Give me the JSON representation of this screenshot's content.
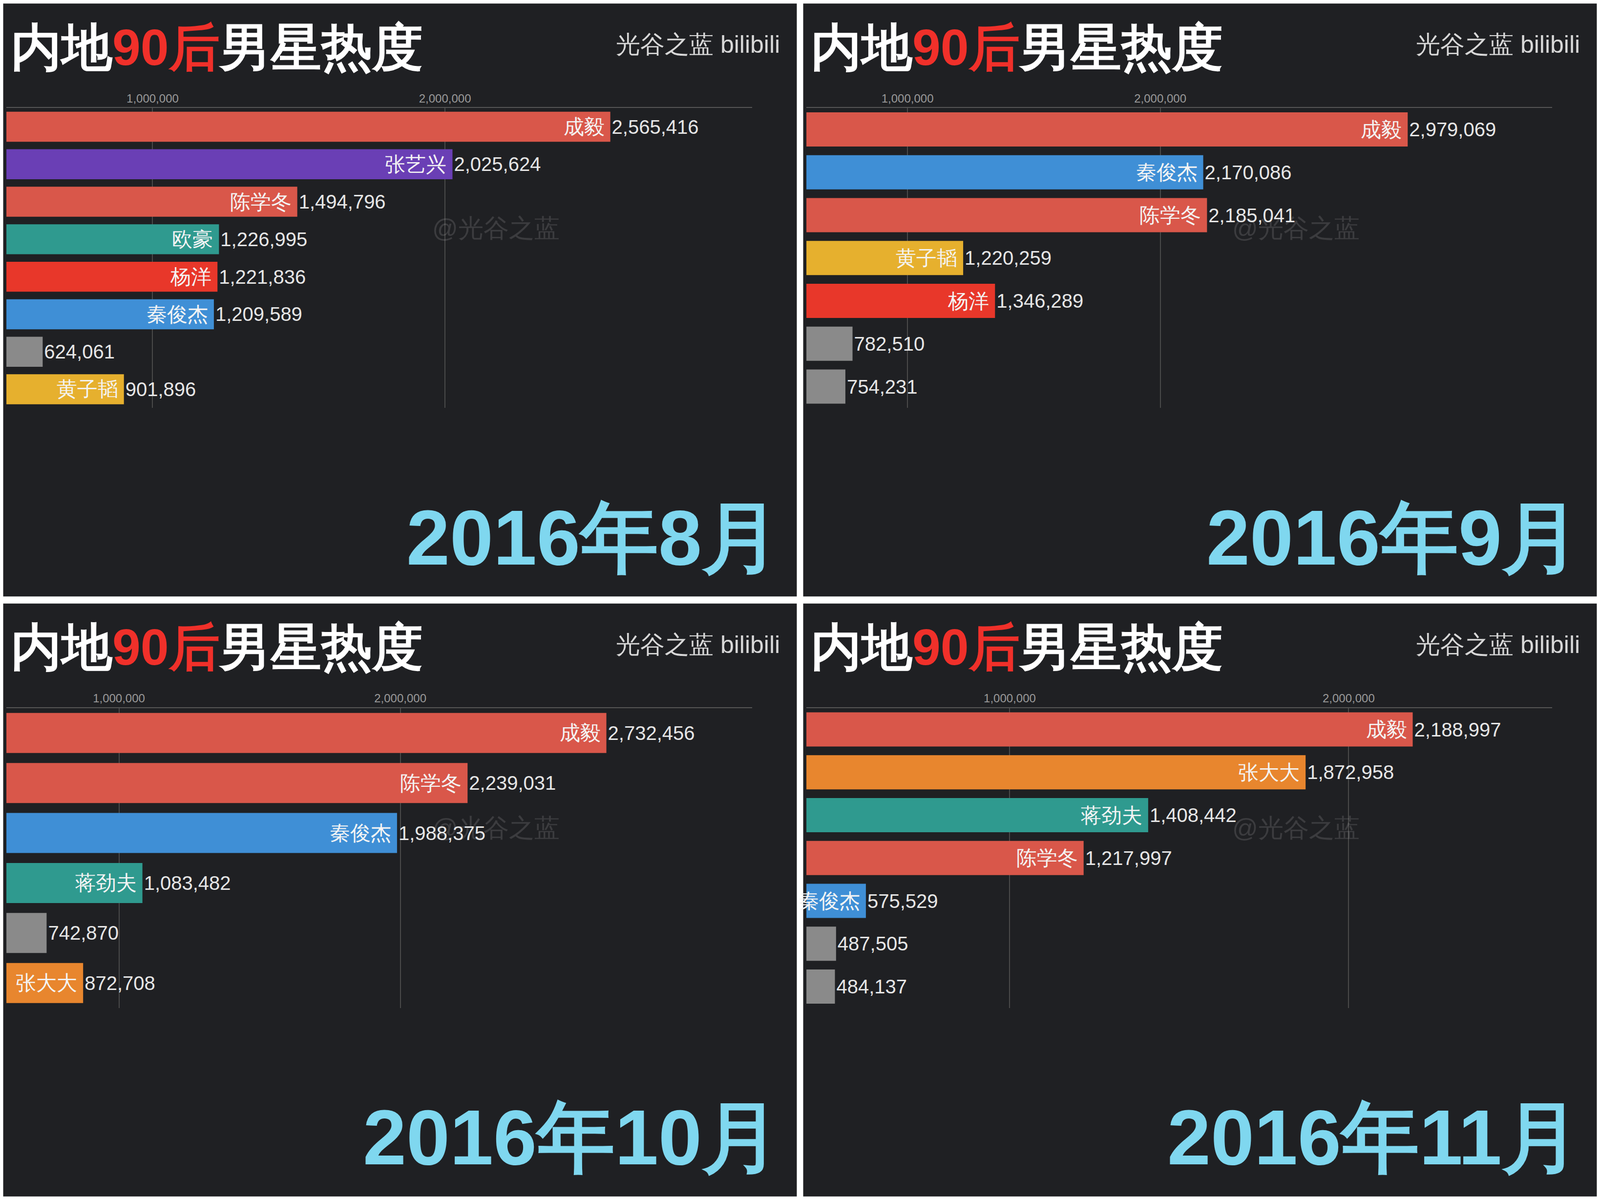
{
  "chart_data": [
    {
      "type": "bar",
      "title": "内地90后男星热度",
      "source": "光谷之蓝 bilibili",
      "watermark": "@光谷之蓝",
      "period": "2016年8月",
      "orientation": "horizontal",
      "grid": true,
      "data_labels": true,
      "tick_labels": "x",
      "categories": [
        "成毅",
        "张艺兴",
        "陈学冬",
        "欧豪",
        "杨洋",
        "秦俊杰",
        null,
        "黄子韬"
      ],
      "values": [
        2565416,
        2025624,
        1494796,
        1226995,
        1221836,
        1209589,
        624061,
        901896
      ],
      "value_labels": [
        "2,565,416",
        "2,025,624",
        "1,494,796",
        "1,226,995",
        "1,221,836",
        "1,209,589",
        "624,061",
        "901,896"
      ],
      "colors": [
        "#d9574a",
        "#6a3fb5",
        "#d9574a",
        "#2f9a8f",
        "#e8372a",
        "#3f8fd6",
        "#8a8a8a",
        "#e6b02e"
      ],
      "xlim": [
        500000,
        3050000
      ],
      "xticks": [
        {
          "value": 1000000,
          "label": "1,000,000"
        },
        {
          "value": 2000000,
          "label": "2,000,000"
        }
      ]
    },
    {
      "type": "bar",
      "title": "内地90后男星热度",
      "source": "光谷之蓝 bilibili",
      "watermark": "@光谷之蓝",
      "period": "2016年9月",
      "orientation": "horizontal",
      "grid": true,
      "data_labels": true,
      "tick_labels": "x",
      "categories": [
        "成毅",
        "秦俊杰",
        "陈学冬",
        "黄子韬",
        "杨洋",
        null,
        null
      ],
      "values": [
        2979069,
        2170086,
        2185041,
        1220259,
        1346289,
        782510,
        754231
      ],
      "value_labels": [
        "2,979,069",
        "2,170,086",
        "2,185,041",
        "1,220,259",
        "1,346,289",
        "782,510",
        "754,231"
      ],
      "colors": [
        "#d9574a",
        "#3f8fd6",
        "#d9574a",
        "#e6b02e",
        "#e8372a",
        "#8a8a8a",
        "#8a8a8a"
      ],
      "xlim": [
        600000,
        3550000
      ],
      "xticks": [
        {
          "value": 1000000,
          "label": "1,000,000"
        },
        {
          "value": 2000000,
          "label": "2,000,000"
        }
      ]
    },
    {
      "type": "bar",
      "title": "内地90后男星热度",
      "source": "光谷之蓝 bilibili",
      "watermark": "@光谷之蓝",
      "period": "2016年10月",
      "orientation": "horizontal",
      "grid": true,
      "data_labels": true,
      "tick_labels": "x",
      "categories": [
        "成毅",
        "陈学冬",
        "秦俊杰",
        "蒋劲夫",
        null,
        "张大大"
      ],
      "values": [
        2732456,
        2239031,
        1988375,
        1083482,
        742870,
        872708
      ],
      "value_labels": [
        "2,732,456",
        "2,239,031",
        "1,988,375",
        "1,083,482",
        "742,870",
        "872,708"
      ],
      "colors": [
        "#d9574a",
        "#d9574a",
        "#3f8fd6",
        "#2f9a8f",
        "#8a8a8a",
        "#e8862e"
      ],
      "xlim": [
        600000,
        3250000
      ],
      "xticks": [
        {
          "value": 1000000,
          "label": "1,000,000"
        },
        {
          "value": 2000000,
          "label": "2,000,000"
        }
      ]
    },
    {
      "type": "bar",
      "title": "内地90后男星热度",
      "source": "光谷之蓝 bilibili",
      "watermark": "@光谷之蓝",
      "period": "2016年11月",
      "orientation": "horizontal",
      "grid": true,
      "data_labels": true,
      "tick_labels": "x",
      "categories": [
        "成毅",
        "张大大",
        "蒋劲夫",
        "陈学冬",
        "秦俊杰",
        null,
        null
      ],
      "values": [
        2188997,
        1872958,
        1408442,
        1217997,
        575529,
        487505,
        484137
      ],
      "value_labels": [
        "2,188,997",
        "1,872,958",
        "1,408,442",
        "1,217,997",
        "575,529",
        "487,505",
        "484,137"
      ],
      "colors": [
        "#d9574a",
        "#e8862e",
        "#2f9a8f",
        "#d9574a",
        "#3f8fd6",
        "#8a8a8a",
        "#8a8a8a"
      ],
      "xlim": [
        400000,
        2600000
      ],
      "xticks": [
        {
          "value": 1000000,
          "label": "1,000,000"
        },
        {
          "value": 2000000,
          "label": "2,000,000"
        }
      ]
    }
  ]
}
